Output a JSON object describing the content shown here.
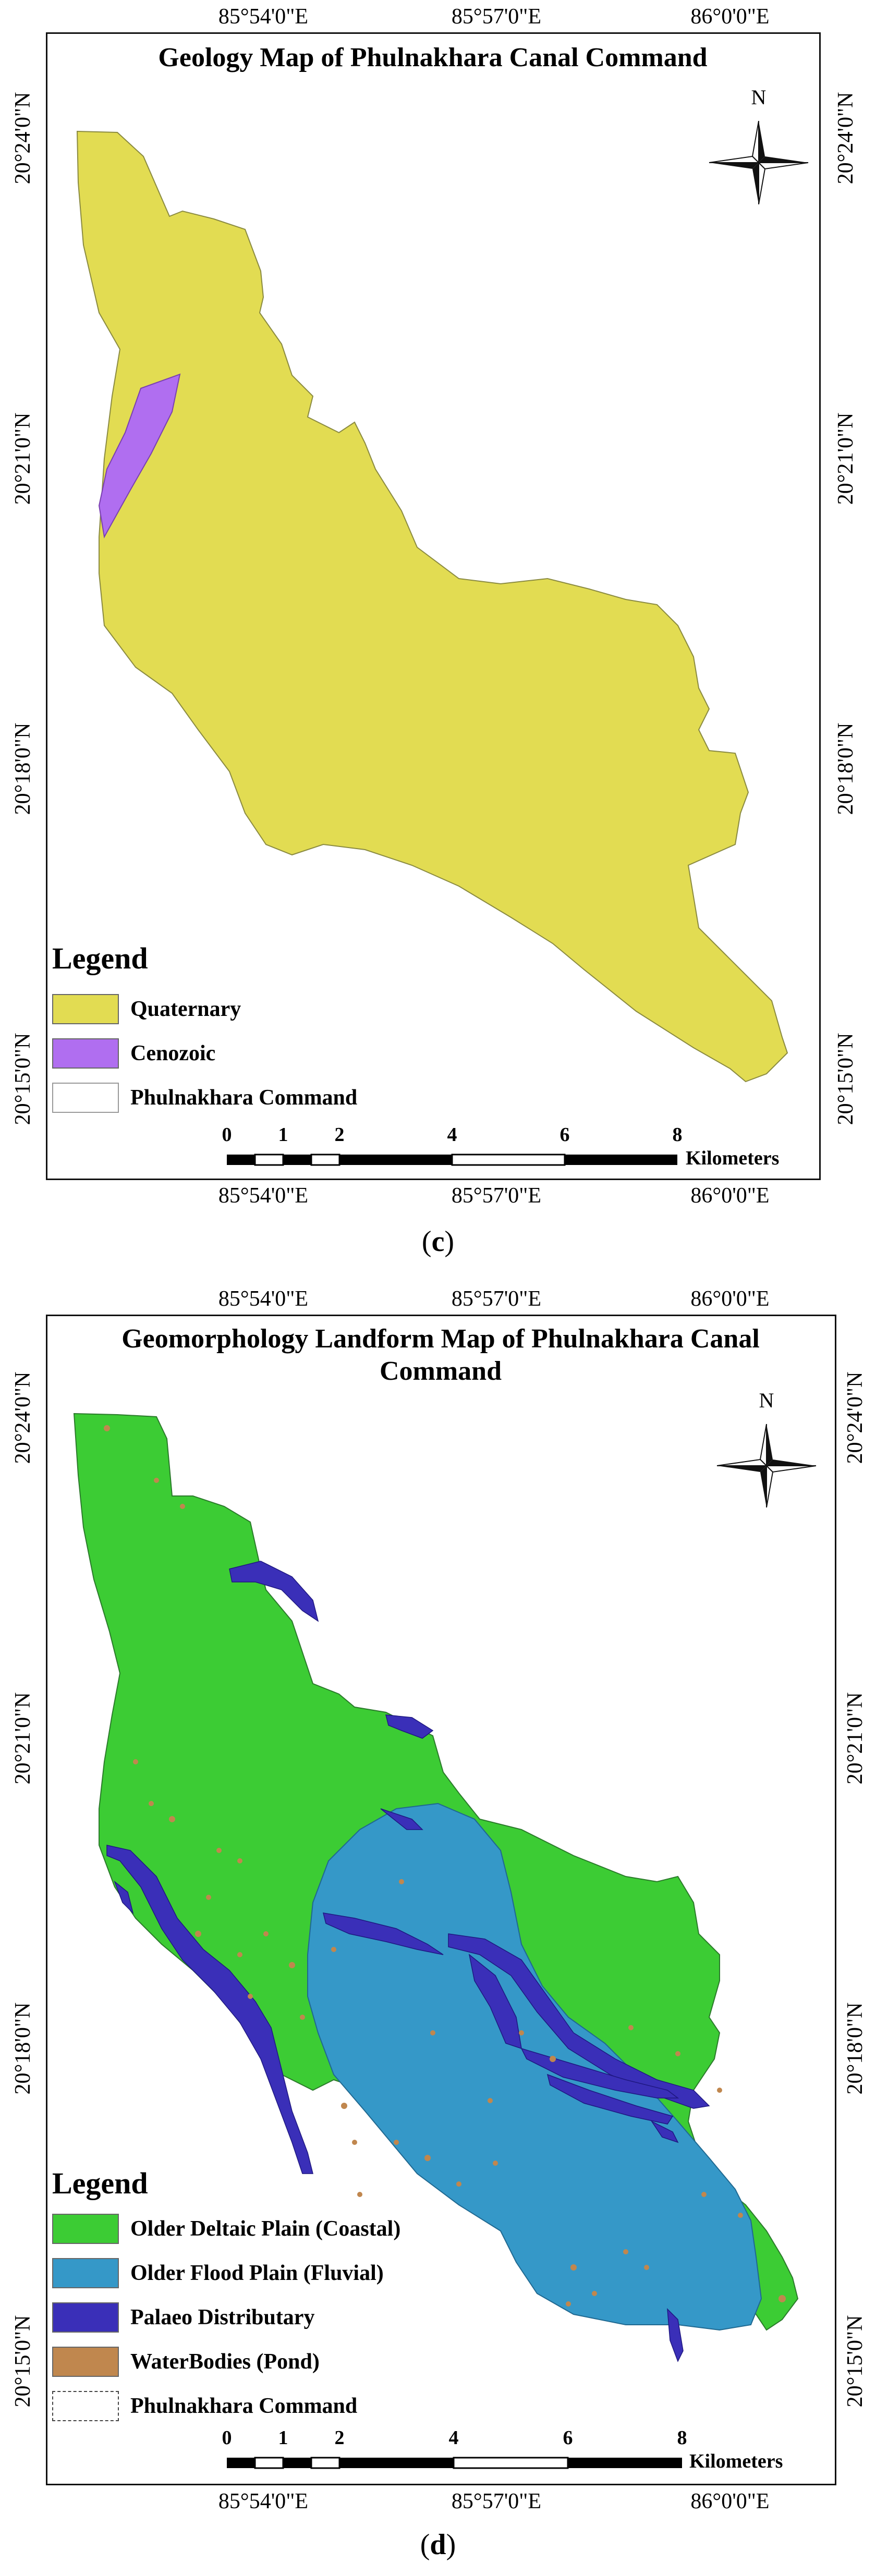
{
  "panel_c": {
    "title": "Geology Map of Phulnakhara Canal Command",
    "longitudes": [
      "85°54'0\"E",
      "85°57'0\"E",
      "86°0'0\"E"
    ],
    "latitudes": [
      "20°24'0\"N",
      "20°21'0\"N",
      "20°18'0\"N",
      "20°15'0\"N"
    ],
    "north_label": "N",
    "legend_title": "Legend",
    "legend": [
      {
        "label": "Quaternary",
        "color": "#e2dc52"
      },
      {
        "label": "Cenozoic",
        "color": "#b06ef0"
      },
      {
        "label": "Phulnakhara Command",
        "color": "#ffffff"
      }
    ],
    "scale_ticks": [
      "0",
      "1",
      "2",
      "4",
      "6",
      "8"
    ],
    "scale_unit": "Kilometers",
    "caption_letter": "c"
  },
  "panel_d": {
    "title_line1": "Geomorphology Landform Map of Phulnakhara Canal",
    "title_line2": "Command",
    "longitudes": [
      "85°54'0\"E",
      "85°57'0\"E",
      "86°0'0\"E"
    ],
    "latitudes": [
      "20°24'0\"N",
      "20°21'0\"N",
      "20°18'0\"N",
      "20°15'0\"N"
    ],
    "north_label": "N",
    "legend_title": "Legend",
    "legend": [
      {
        "label": "Older Deltaic Plain (Coastal)",
        "color": "#3ccc34"
      },
      {
        "label": "Older Flood Plain (Fluvial)",
        "color": "#3598c8"
      },
      {
        "label": "Palaeo Distributary",
        "color": "#3a2fb8"
      },
      {
        "label": "WaterBodies (Pond)",
        "color": "#c0874e"
      },
      {
        "label": "Phulnakhara Command",
        "color": "#ffffff"
      }
    ],
    "scale_ticks": [
      "0",
      "1",
      "2",
      "4",
      "6",
      "8"
    ],
    "scale_unit": "Kilometers",
    "caption_letter": "d"
  }
}
